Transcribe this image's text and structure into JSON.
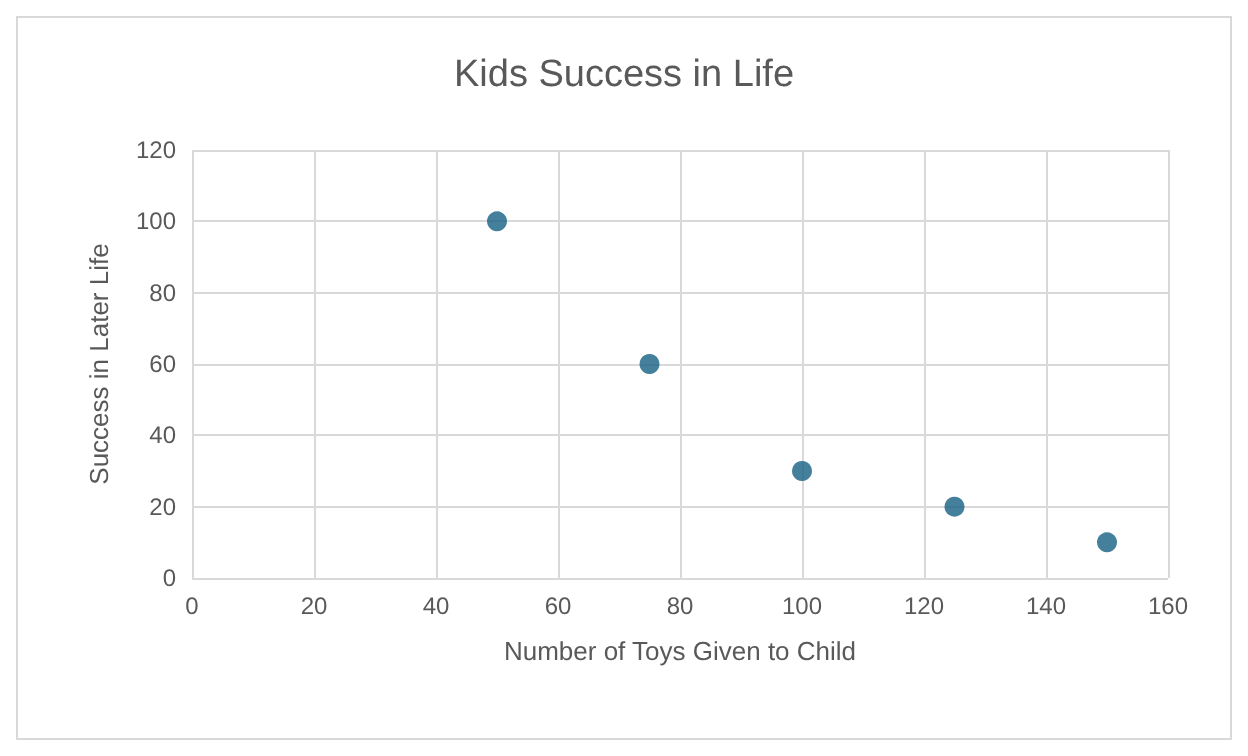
{
  "chart_data": {
    "type": "scatter",
    "title": "Kids Success in Life",
    "xlabel": "Number of Toys Given to Child",
    "ylabel": "Success in Later Life",
    "x": [
      50,
      75,
      100,
      125,
      150
    ],
    "values": [
      100,
      60,
      30,
      20,
      10
    ],
    "color": "#156082",
    "xlim": [
      0,
      160
    ],
    "xticks": [
      0,
      20,
      40,
      60,
      80,
      100,
      120,
      140,
      160
    ],
    "ylim": [
      0,
      120
    ],
    "yticks": [
      0,
      20,
      40,
      60,
      80,
      100,
      120
    ],
    "grid": true,
    "marker": "circle"
  }
}
